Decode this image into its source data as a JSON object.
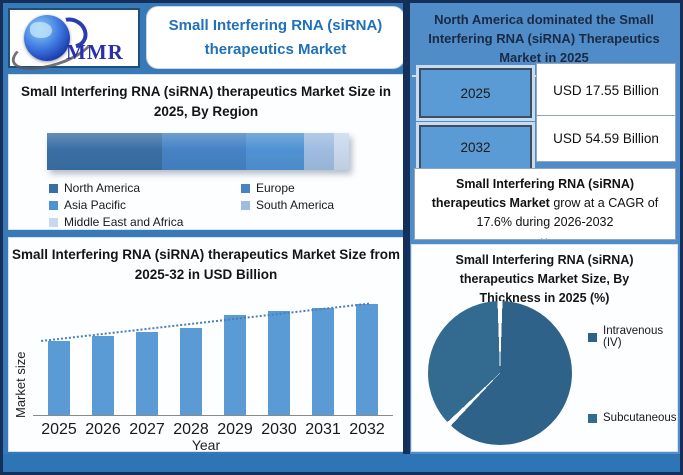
{
  "logo": {
    "text": "MMR"
  },
  "main_title": "Small Interfering RNA (siRNA) therapeutics Market",
  "right_panel": {
    "headline": "North America dominated the Small Interfering RNA (siRNA) Therapeutics Market in 2025",
    "rows": [
      {
        "year": "2025",
        "value": "USD 17.55 Billion"
      },
      {
        "year": "2032",
        "value": "USD 54.59 Billion"
      }
    ],
    "cagr_text_bold": "Small Interfering RNA (siRNA) therapeutics Market",
    "cagr_text_rest": " grow at a CAGR of 17.6% during 2026-2032",
    "footnote": ".."
  },
  "colors": {
    "background_blue": "#3879B8",
    "right_background": "#4F8CC8",
    "frame_navy": "#14305A",
    "strip_blue": "#2E75B6",
    "title_blue": "#2171B8",
    "column_bar_blue": "#5B9BD5",
    "pie_slice_blue": "#2F6289"
  },
  "chart_data": [
    {
      "id": "region_share_2025",
      "type": "bar",
      "variant": "stacked-horizontal-single-bar",
      "title": "Small Interfering RNA (siRNA) therapeutics Market Size in 2025, By Region",
      "categories": [
        "North America",
        "Europe",
        "Asia Pacific",
        "South America",
        "Middle East and Africa"
      ],
      "values": [
        38,
        28,
        19,
        10,
        5
      ],
      "values_note": "approximate % share read from segment widths; no numeric labels shown",
      "colors": [
        "#3A6FA4",
        "#4583C5",
        "#4F92D3",
        "#9FBCE0",
        "#C9D8EC"
      ],
      "legend_position": "bottom"
    },
    {
      "id": "market_size_2025_32",
      "type": "bar",
      "title": "Small Interfering RNA (siRNA) therapeutics Market Size from 2025-32 in USD Billion",
      "categories": [
        "2025",
        "2026",
        "2027",
        "2028",
        "2029",
        "2030",
        "2031",
        "2032"
      ],
      "values": [
        67,
        71,
        75,
        78,
        90,
        94,
        96,
        100
      ],
      "values_note": "relative bar heights in % of tallest bar; y-axis has no tick labels",
      "xlabel": "Year",
      "ylabel": "Market size",
      "bar_color": "#5B9BD5",
      "trendline": "dotted",
      "trendline_color": "#4A7EBB",
      "grid": false
    },
    {
      "id": "by_thickness_2025",
      "type": "pie",
      "title": "Small Interfering RNA (siRNA) therapeutics Market Size, By Thickness in 2025 (%)",
      "labels": [
        "Intravenous (IV)",
        "Subcutaneous"
      ],
      "values": [
        62.5,
        37.5
      ],
      "values_note": "estimated from slice angles; no data labels shown",
      "colors": [
        "#2F6289",
        "#336A8F"
      ],
      "legend_position": "right"
    }
  ]
}
